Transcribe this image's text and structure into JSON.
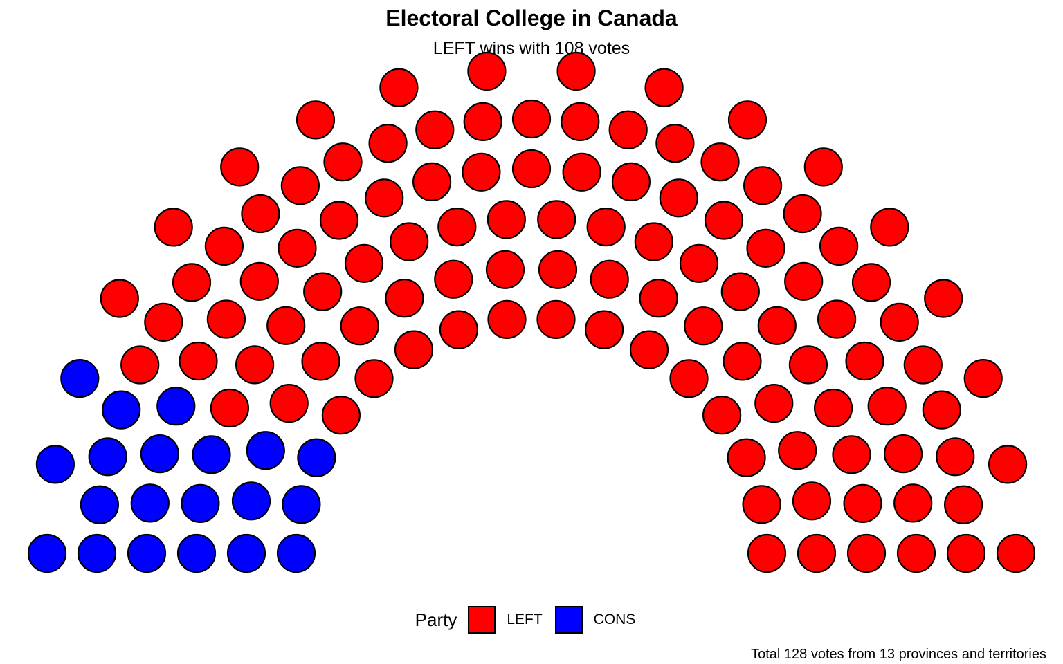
{
  "chart_data": {
    "type": "parliament",
    "title": "Electoral College in Canada",
    "subtitle": "LEFT wins with 108 votes",
    "caption": "Total 128 votes from 13 provinces and territories",
    "legend": {
      "title": "Party",
      "placement": "bottom",
      "entries": [
        {
          "name": "LEFT",
          "color": "#ff0000"
        },
        {
          "name": "CONS",
          "color": "#0000ff"
        }
      ]
    },
    "series": [
      {
        "name": "LEFT",
        "seats": 108,
        "color": "#ff0000"
      },
      {
        "name": "CONS",
        "seats": 20,
        "color": "#0000ff"
      }
    ],
    "total": 128,
    "rows": [
      16,
      18,
      22,
      25,
      29,
      18
    ]
  }
}
